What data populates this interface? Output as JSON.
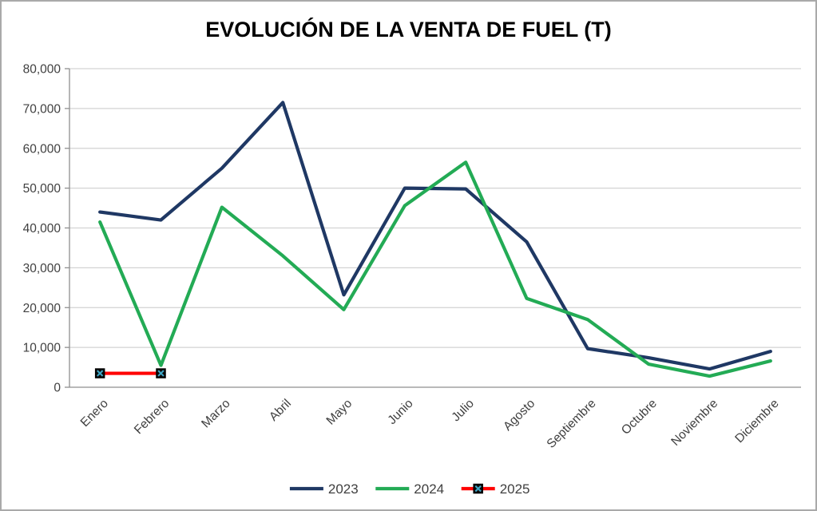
{
  "window": {
    "background": "#ffffff",
    "border_color": "#a9a9a9"
  },
  "chart_data": {
    "type": "line",
    "title": "EVOLUCIÓN DE LA VENTA DE FUEL (T)",
    "categories": [
      "Enero",
      "Febrero",
      "Marzo",
      "Abril",
      "Mayo",
      "Junio",
      "Julio",
      "Agosto",
      "Septiembre",
      "Octubre",
      "Noviembre",
      "Diciembre"
    ],
    "series": [
      {
        "name": "2023",
        "color": "#1F3864",
        "marker": "none",
        "values": [
          44000,
          42000,
          55000,
          71500,
          23200,
          50000,
          49800,
          36500,
          9700,
          7400,
          4600,
          9000
        ]
      },
      {
        "name": "2024",
        "color": "#23AB55",
        "marker": "none",
        "values": [
          41500,
          5500,
          45200,
          33000,
          19500,
          45600,
          56500,
          22300,
          17000,
          5800,
          2800,
          6600
        ]
      },
      {
        "name": "2025",
        "color": "#FF0000",
        "marker": "x-square",
        "marker_fill": "#0a0a0a",
        "marker_border": "#000000",
        "marker_x_color": "#3EA6C6",
        "values": [
          3500,
          3500,
          null,
          null,
          null,
          null,
          null,
          null,
          null,
          null,
          null,
          null
        ]
      }
    ],
    "ylim": [
      0,
      80000
    ],
    "ytick_step": 10000,
    "ytick_labels": [
      "0",
      "10,000",
      "20,000",
      "30,000",
      "40,000",
      "50,000",
      "60,000",
      "70,000",
      "80,000"
    ],
    "grid": "horizontal",
    "gridline_color": "#d3d3d3",
    "axis_color": "#8f8f8f",
    "legend_position": "bottom",
    "legend_labels": [
      "2023",
      "2024",
      "2025"
    ]
  }
}
